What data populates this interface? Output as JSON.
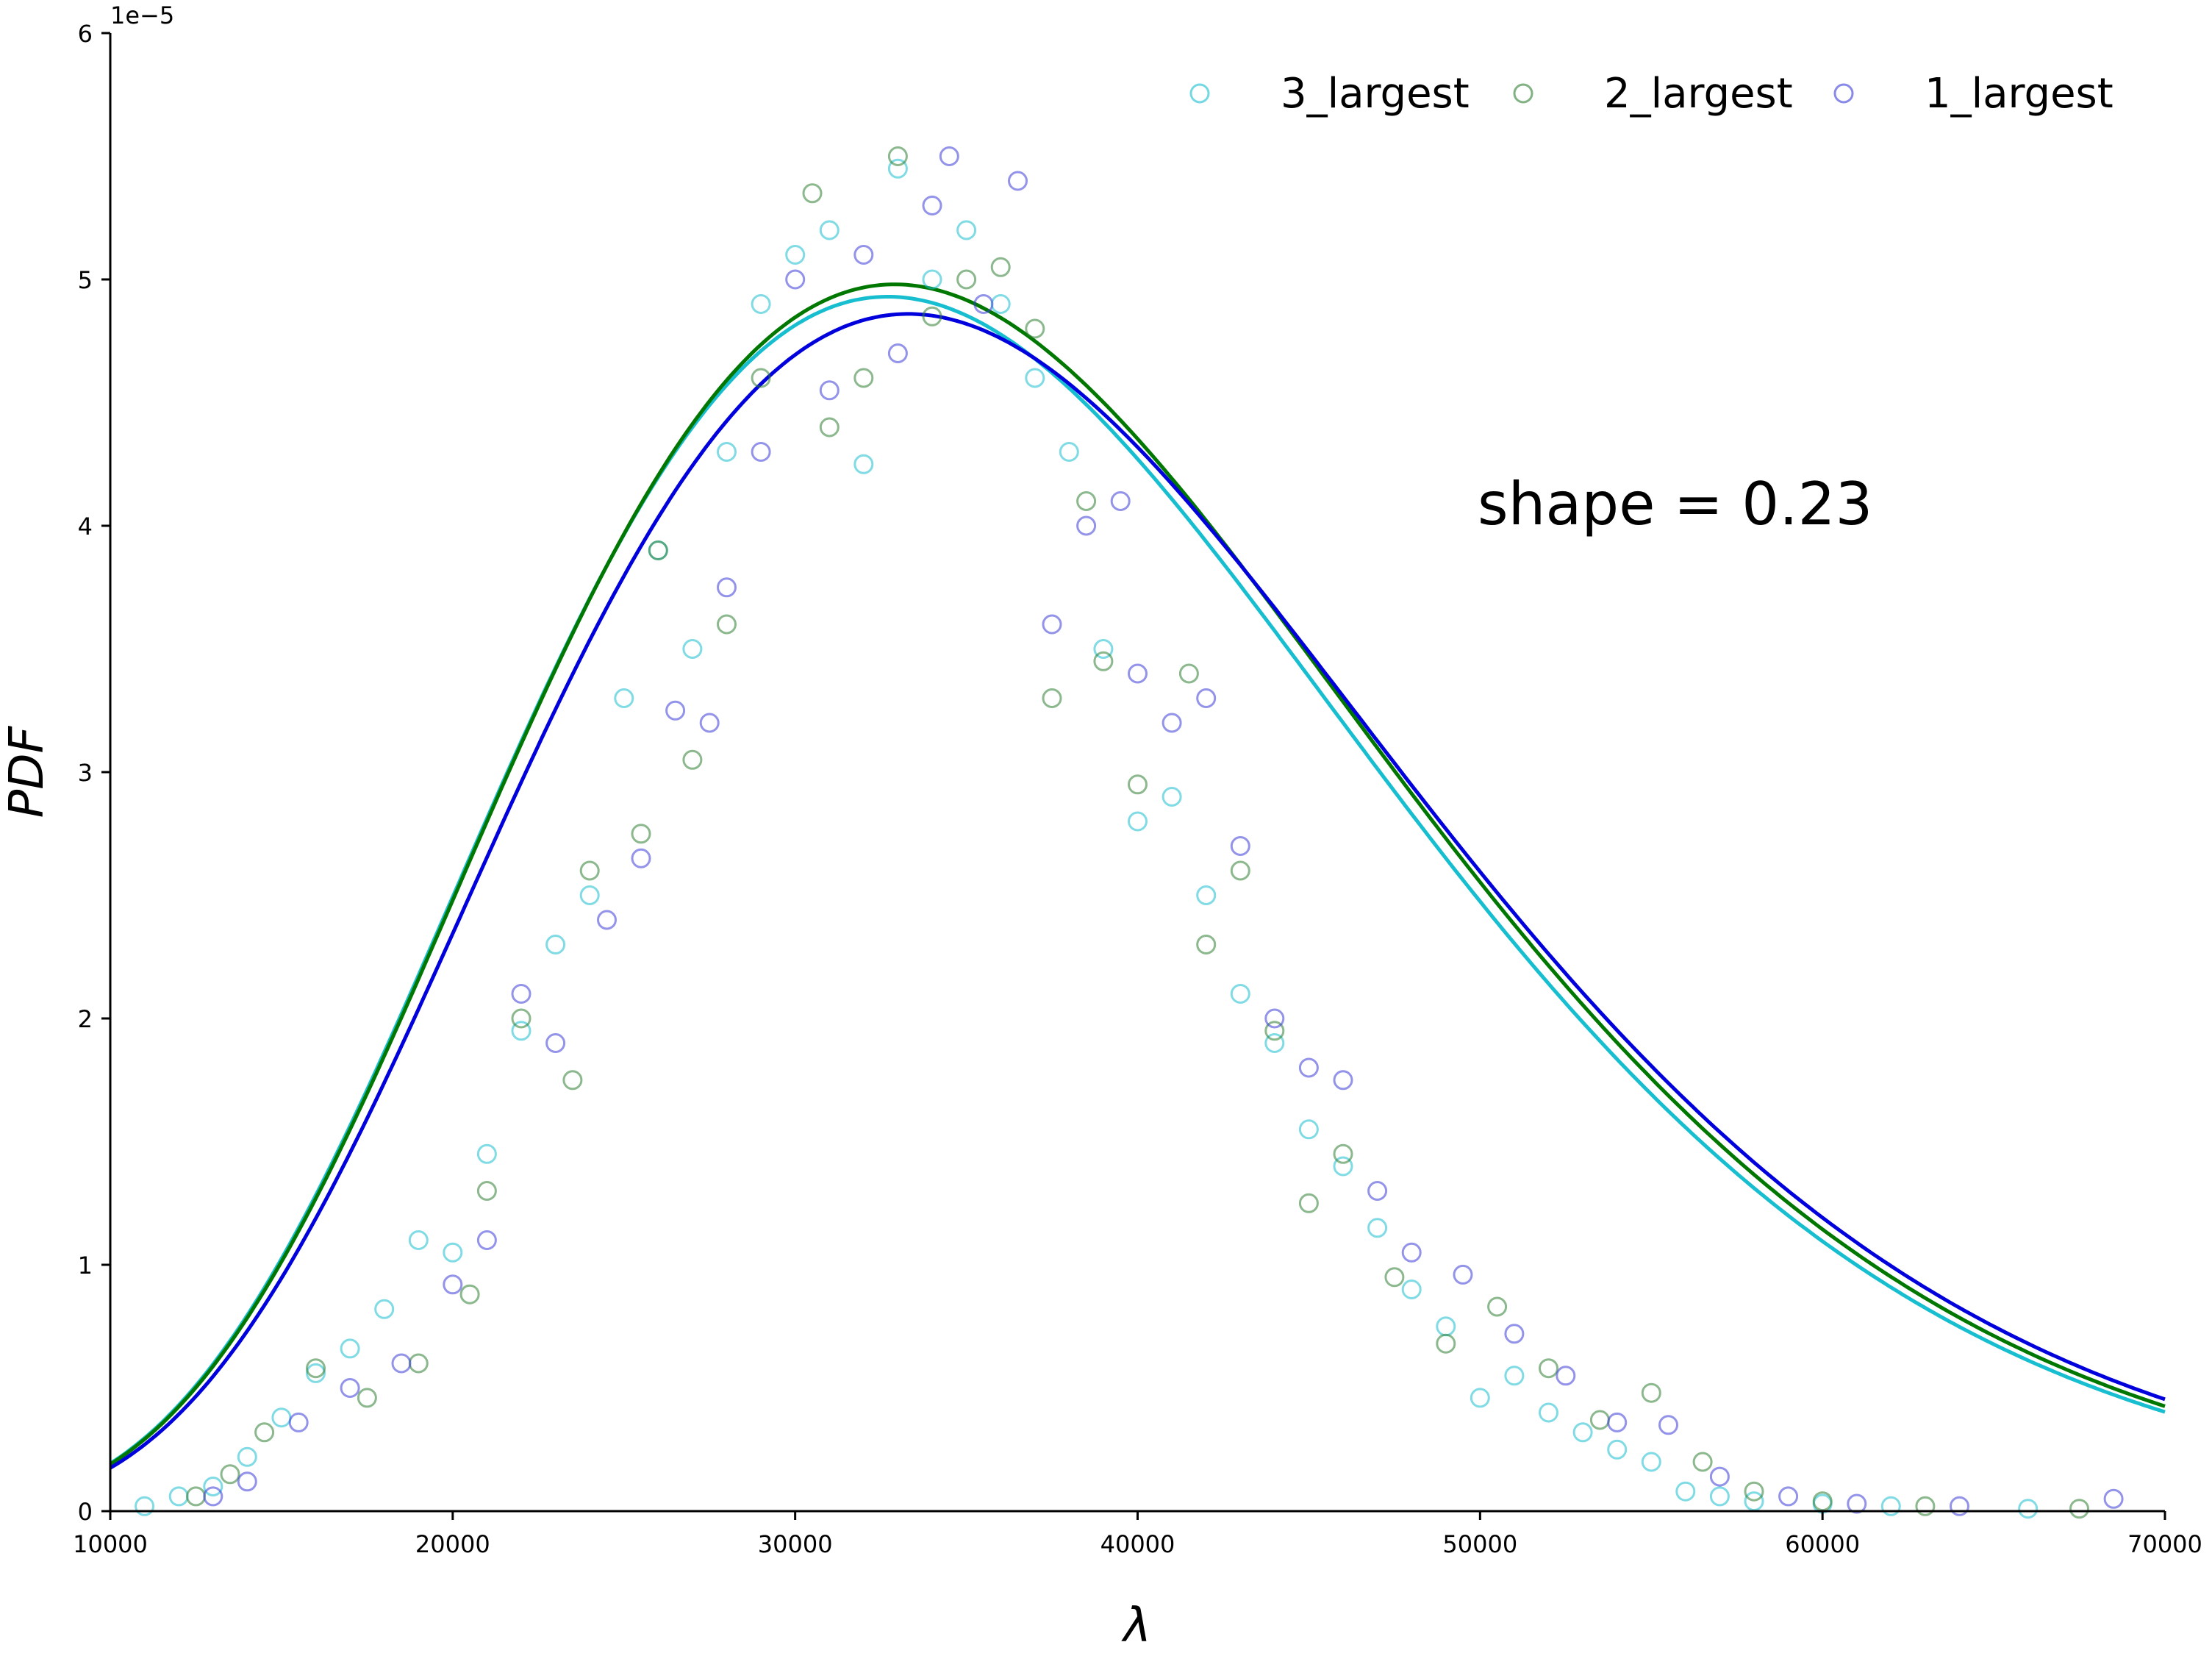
{
  "chart_data": {
    "type": "scatter",
    "title": "",
    "xlabel": "λ",
    "ylabel": "PDF",
    "xlim": [
      10000,
      70000
    ],
    "ylim": [
      0,
      6e-05
    ],
    "y_offset_label": "1e−5",
    "xticks": [
      10000,
      20000,
      30000,
      40000,
      50000,
      60000,
      70000
    ],
    "xtick_labels": [
      "10000",
      "20000",
      "30000",
      "40000",
      "50000",
      "60000",
      "70000"
    ],
    "yticks": [
      0,
      1e-05,
      2e-05,
      3e-05,
      4e-05,
      5e-05,
      6e-05
    ],
    "ytick_labels": [
      "0",
      "1",
      "2",
      "3",
      "4",
      "5",
      "6"
    ],
    "grid": false,
    "legend_position": "top-right",
    "annotation": "shape = 0.23",
    "series": [
      {
        "name": "3_largest",
        "marker": "open-circle",
        "color": "#17becf",
        "fit": {
          "mode": 32700,
          "peak": 4.93e-05,
          "color": "#17becf"
        },
        "points": [
          [
            11000,
            2e-07
          ],
          [
            12000,
            6e-07
          ],
          [
            13000,
            1e-06
          ],
          [
            14000,
            2.2e-06
          ],
          [
            15000,
            3.8e-06
          ],
          [
            16000,
            5.6e-06
          ],
          [
            17000,
            6.6e-06
          ],
          [
            18000,
            8.2e-06
          ],
          [
            19000,
            1.1e-05
          ],
          [
            20000,
            1.05e-05
          ],
          [
            21000,
            1.45e-05
          ],
          [
            22000,
            1.95e-05
          ],
          [
            23000,
            2.3e-05
          ],
          [
            24000,
            2.5e-05
          ],
          [
            25000,
            3.3e-05
          ],
          [
            26000,
            3.9e-05
          ],
          [
            27000,
            3.5e-05
          ],
          [
            28000,
            4.3e-05
          ],
          [
            29000,
            4.9e-05
          ],
          [
            30000,
            5.1e-05
          ],
          [
            31000,
            5.2e-05
          ],
          [
            32000,
            4.25e-05
          ],
          [
            33000,
            5.45e-05
          ],
          [
            34000,
            5e-05
          ],
          [
            35000,
            5.2e-05
          ],
          [
            36000,
            4.9e-05
          ],
          [
            37000,
            4.6e-05
          ],
          [
            38000,
            4.3e-05
          ],
          [
            39000,
            3.5e-05
          ],
          [
            40000,
            2.8e-05
          ],
          [
            41000,
            2.9e-05
          ],
          [
            42000,
            2.5e-05
          ],
          [
            43000,
            2.1e-05
          ],
          [
            44000,
            1.9e-05
          ],
          [
            45000,
            1.55e-05
          ],
          [
            46000,
            1.4e-05
          ],
          [
            47000,
            1.15e-05
          ],
          [
            48000,
            9e-06
          ],
          [
            49000,
            7.5e-06
          ],
          [
            50000,
            4.6e-06
          ],
          [
            51000,
            5.5e-06
          ],
          [
            52000,
            4e-06
          ],
          [
            53000,
            3.2e-06
          ],
          [
            54000,
            2.5e-06
          ],
          [
            55000,
            2e-06
          ],
          [
            56000,
            8e-07
          ],
          [
            57000,
            6e-07
          ],
          [
            58000,
            4e-07
          ],
          [
            60000,
            3e-07
          ],
          [
            62000,
            2e-07
          ],
          [
            66000,
            1e-07
          ]
        ]
      },
      {
        "name": "2_largest",
        "marker": "open-circle",
        "color": "#2e7d32",
        "fit": {
          "mode": 32900,
          "peak": 4.98e-05,
          "color": "#007700"
        },
        "points": [
          [
            12500,
            6e-07
          ],
          [
            13500,
            1.5e-06
          ],
          [
            14500,
            3.2e-06
          ],
          [
            16000,
            5.8e-06
          ],
          [
            17500,
            4.6e-06
          ],
          [
            19000,
            6e-06
          ],
          [
            20500,
            8.8e-06
          ],
          [
            21000,
            1.3e-05
          ],
          [
            22000,
            2e-05
          ],
          [
            23500,
            1.75e-05
          ],
          [
            24000,
            2.6e-05
          ],
          [
            25500,
            2.75e-05
          ],
          [
            26000,
            3.9e-05
          ],
          [
            27000,
            3.05e-05
          ],
          [
            28000,
            3.6e-05
          ],
          [
            29000,
            4.6e-05
          ],
          [
            30500,
            5.35e-05
          ],
          [
            31000,
            4.4e-05
          ],
          [
            32000,
            4.6e-05
          ],
          [
            33000,
            5.5e-05
          ],
          [
            34000,
            4.85e-05
          ],
          [
            35000,
            5e-05
          ],
          [
            36000,
            5.05e-05
          ],
          [
            37000,
            4.8e-05
          ],
          [
            37500,
            3.3e-05
          ],
          [
            38500,
            4.1e-05
          ],
          [
            39000,
            3.45e-05
          ],
          [
            40000,
            2.95e-05
          ],
          [
            41500,
            3.4e-05
          ],
          [
            42000,
            2.3e-05
          ],
          [
            43000,
            2.6e-05
          ],
          [
            44000,
            1.95e-05
          ],
          [
            45000,
            1.25e-05
          ],
          [
            46000,
            1.45e-05
          ],
          [
            47500,
            9.5e-06
          ],
          [
            49000,
            6.8e-06
          ],
          [
            50500,
            8.3e-06
          ],
          [
            52000,
            5.8e-06
          ],
          [
            53500,
            3.7e-06
          ],
          [
            55000,
            4.8e-06
          ],
          [
            56500,
            2e-06
          ],
          [
            58000,
            8e-07
          ],
          [
            60000,
            4e-07
          ],
          [
            63000,
            2e-07
          ],
          [
            67500,
            1e-07
          ]
        ]
      },
      {
        "name": "1_largest",
        "marker": "open-circle",
        "color": "#3b3bd9",
        "fit": {
          "mode": 33300,
          "peak": 4.86e-05,
          "color": "#0000dd"
        },
        "points": [
          [
            13000,
            6e-07
          ],
          [
            14000,
            1.2e-06
          ],
          [
            15500,
            3.6e-06
          ],
          [
            17000,
            5e-06
          ],
          [
            18500,
            6e-06
          ],
          [
            20000,
            9.2e-06
          ],
          [
            21000,
            1.1e-05
          ],
          [
            22000,
            2.1e-05
          ],
          [
            23000,
            1.9e-05
          ],
          [
            24500,
            2.4e-05
          ],
          [
            25500,
            2.65e-05
          ],
          [
            26500,
            3.25e-05
          ],
          [
            27500,
            3.2e-05
          ],
          [
            28000,
            3.75e-05
          ],
          [
            29000,
            4.3e-05
          ],
          [
            30000,
            5e-05
          ],
          [
            31000,
            4.55e-05
          ],
          [
            32000,
            5.1e-05
          ],
          [
            33000,
            4.7e-05
          ],
          [
            34000,
            5.3e-05
          ],
          [
            34500,
            5.5e-05
          ],
          [
            35500,
            4.9e-05
          ],
          [
            36500,
            5.4e-05
          ],
          [
            37500,
            3.6e-05
          ],
          [
            38500,
            4e-05
          ],
          [
            39500,
            4.1e-05
          ],
          [
            40000,
            3.4e-05
          ],
          [
            41000,
            3.2e-05
          ],
          [
            42000,
            3.3e-05
          ],
          [
            43000,
            2.7e-05
          ],
          [
            44000,
            2e-05
          ],
          [
            45000,
            1.8e-05
          ],
          [
            46000,
            1.75e-05
          ],
          [
            47000,
            1.3e-05
          ],
          [
            48000,
            1.05e-05
          ],
          [
            49500,
            9.6e-06
          ],
          [
            51000,
            7.2e-06
          ],
          [
            52500,
            5.5e-06
          ],
          [
            54000,
            3.6e-06
          ],
          [
            55500,
            3.5e-06
          ],
          [
            57000,
            1.4e-06
          ],
          [
            59000,
            6e-07
          ],
          [
            61000,
            3e-07
          ],
          [
            64000,
            2e-07
          ],
          [
            68500,
            5e-07
          ]
        ]
      }
    ]
  }
}
